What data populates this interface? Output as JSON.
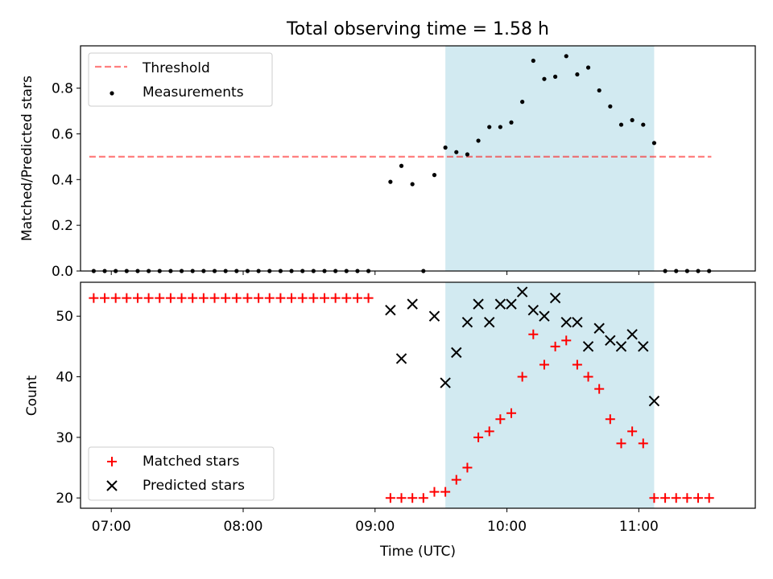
{
  "figure": {
    "title": "Total observing time = 1.58 h"
  },
  "chart_data": [
    {
      "type": "scatter",
      "id": "ratio",
      "title": "Total observing time = 1.58 h",
      "ylabel": "Matched/Predicted stars",
      "xlabel": "",
      "xlim": [
        "06:46",
        "11:53"
      ],
      "ylim": [
        0,
        0.985
      ],
      "yticks": [
        0.0,
        0.2,
        0.4,
        0.6,
        0.8
      ],
      "ytick_labels": [
        "0.0",
        "0.2",
        "0.4",
        "0.6",
        "0.8"
      ],
      "xticks": [
        "07:00",
        "08:00",
        "09:00",
        "10:00",
        "11:00"
      ],
      "grid": false,
      "legend_position": "upper left",
      "shaded_span": {
        "start": "09:32",
        "end": "11:07",
        "color": "#add8e6"
      },
      "threshold": {
        "name": "Threshold",
        "value": 0.5,
        "x_start": "06:50",
        "x_end": "11:33",
        "color": "#ff0000",
        "style": "dashed"
      },
      "series": [
        {
          "name": "Measurements",
          "marker": "dot",
          "color": "#000000",
          "points": [
            [
              "06:52",
              0.0
            ],
            [
              "06:57",
              0.0
            ],
            [
              "07:02",
              0.0
            ],
            [
              "07:07",
              0.0
            ],
            [
              "07:12",
              0.0
            ],
            [
              "07:17",
              0.0
            ],
            [
              "07:22",
              0.0
            ],
            [
              "07:27",
              0.0
            ],
            [
              "07:32",
              0.0
            ],
            [
              "07:37",
              0.0
            ],
            [
              "07:42",
              0.0
            ],
            [
              "07:47",
              0.0
            ],
            [
              "07:52",
              0.0
            ],
            [
              "07:57",
              0.0
            ],
            [
              "08:02",
              0.0
            ],
            [
              "08:07",
              0.0
            ],
            [
              "08:12",
              0.0
            ],
            [
              "08:17",
              0.0
            ],
            [
              "08:22",
              0.0
            ],
            [
              "08:27",
              0.0
            ],
            [
              "08:32",
              0.0
            ],
            [
              "08:37",
              0.0
            ],
            [
              "08:42",
              0.0
            ],
            [
              "08:47",
              0.0
            ],
            [
              "08:52",
              0.0
            ],
            [
              "08:57",
              0.0
            ],
            [
              "09:07",
              0.39
            ],
            [
              "09:12",
              0.46
            ],
            [
              "09:17",
              0.38
            ],
            [
              "09:22",
              0.0
            ],
            [
              "09:27",
              0.42
            ],
            [
              "09:32",
              0.54
            ],
            [
              "09:37",
              0.52
            ],
            [
              "09:42",
              0.51
            ],
            [
              "09:47",
              0.57
            ],
            [
              "09:52",
              0.63
            ],
            [
              "09:57",
              0.63
            ],
            [
              "10:02",
              0.65
            ],
            [
              "10:07",
              0.74
            ],
            [
              "10:12",
              0.92
            ],
            [
              "10:17",
              0.84
            ],
            [
              "10:22",
              0.85
            ],
            [
              "10:27",
              0.94
            ],
            [
              "10:32",
              0.86
            ],
            [
              "10:37",
              0.89
            ],
            [
              "10:42",
              0.79
            ],
            [
              "10:47",
              0.72
            ],
            [
              "10:52",
              0.64
            ],
            [
              "10:57",
              0.66
            ],
            [
              "11:02",
              0.64
            ],
            [
              "11:07",
              0.56
            ],
            [
              "11:12",
              0.0
            ],
            [
              "11:17",
              0.0
            ],
            [
              "11:22",
              0.0
            ],
            [
              "11:27",
              0.0
            ],
            [
              "11:32",
              0.0
            ]
          ]
        }
      ]
    },
    {
      "type": "scatter",
      "id": "counts",
      "title": "",
      "ylabel": "Count",
      "xlabel": "Time (UTC)",
      "xlim": [
        "06:46",
        "11:53"
      ],
      "ylim": [
        18.3,
        55.6
      ],
      "yticks": [
        20,
        30,
        40,
        50
      ],
      "ytick_labels": [
        "20",
        "30",
        "40",
        "50"
      ],
      "xticks": [
        "07:00",
        "08:00",
        "09:00",
        "10:00",
        "11:00"
      ],
      "grid": false,
      "legend_position": "lower left",
      "shaded_span": {
        "start": "09:32",
        "end": "11:07",
        "color": "#add8e6"
      },
      "series": [
        {
          "name": "Matched stars",
          "marker": "plus",
          "color": "#ff0000",
          "points": [
            [
              "06:52",
              53
            ],
            [
              "06:57",
              53
            ],
            [
              "07:02",
              53
            ],
            [
              "07:07",
              53
            ],
            [
              "07:12",
              53
            ],
            [
              "07:17",
              53
            ],
            [
              "07:22",
              53
            ],
            [
              "07:27",
              53
            ],
            [
              "07:32",
              53
            ],
            [
              "07:37",
              53
            ],
            [
              "07:42",
              53
            ],
            [
              "07:47",
              53
            ],
            [
              "07:52",
              53
            ],
            [
              "07:57",
              53
            ],
            [
              "08:02",
              53
            ],
            [
              "08:07",
              53
            ],
            [
              "08:12",
              53
            ],
            [
              "08:17",
              53
            ],
            [
              "08:22",
              53
            ],
            [
              "08:27",
              53
            ],
            [
              "08:32",
              53
            ],
            [
              "08:37",
              53
            ],
            [
              "08:42",
              53
            ],
            [
              "08:47",
              53
            ],
            [
              "08:52",
              53
            ],
            [
              "08:57",
              53
            ],
            [
              "09:07",
              20
            ],
            [
              "09:12",
              20
            ],
            [
              "09:17",
              20
            ],
            [
              "09:22",
              20
            ],
            [
              "09:27",
              21
            ],
            [
              "09:32",
              21
            ],
            [
              "09:37",
              23
            ],
            [
              "09:42",
              25
            ],
            [
              "09:47",
              30
            ],
            [
              "09:52",
              31
            ],
            [
              "09:57",
              33
            ],
            [
              "10:02",
              34
            ],
            [
              "10:07",
              40
            ],
            [
              "10:12",
              47
            ],
            [
              "10:17",
              42
            ],
            [
              "10:22",
              45
            ],
            [
              "10:27",
              46
            ],
            [
              "10:32",
              42
            ],
            [
              "10:37",
              40
            ],
            [
              "10:42",
              38
            ],
            [
              "10:47",
              33
            ],
            [
              "10:52",
              29
            ],
            [
              "10:57",
              31
            ],
            [
              "11:02",
              29
            ],
            [
              "11:07",
              20
            ],
            [
              "11:12",
              20
            ],
            [
              "11:17",
              20
            ],
            [
              "11:22",
              20
            ],
            [
              "11:27",
              20
            ],
            [
              "11:32",
              20
            ]
          ]
        },
        {
          "name": "Predicted stars",
          "marker": "x",
          "color": "#000000",
          "points": [
            [
              "09:07",
              51
            ],
            [
              "09:12",
              43
            ],
            [
              "09:17",
              52
            ],
            [
              "09:27",
              50
            ],
            [
              "09:32",
              39
            ],
            [
              "09:37",
              44
            ],
            [
              "09:42",
              49
            ],
            [
              "09:47",
              52
            ],
            [
              "09:52",
              49
            ],
            [
              "09:57",
              52
            ],
            [
              "10:02",
              52
            ],
            [
              "10:07",
              54
            ],
            [
              "10:12",
              51
            ],
            [
              "10:17",
              50
            ],
            [
              "10:22",
              53
            ],
            [
              "10:27",
              49
            ],
            [
              "10:32",
              49
            ],
            [
              "10:37",
              45
            ],
            [
              "10:42",
              48
            ],
            [
              "10:47",
              46
            ],
            [
              "10:52",
              45
            ],
            [
              "10:57",
              47
            ],
            [
              "11:02",
              45
            ],
            [
              "11:07",
              36
            ]
          ]
        }
      ]
    }
  ]
}
